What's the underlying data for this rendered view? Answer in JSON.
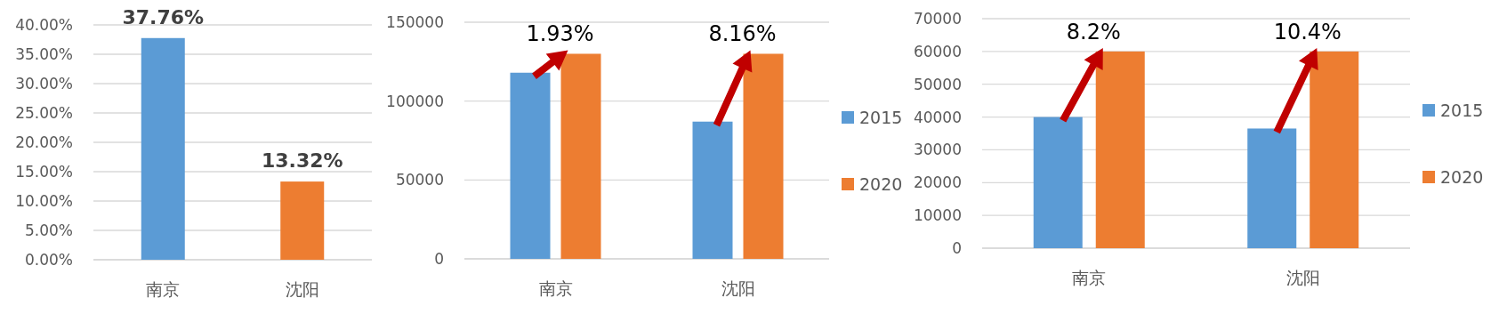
{
  "chart_data": [
    {
      "type": "bar",
      "categories": [
        "南京",
        "沈阳"
      ],
      "values": [
        37.76,
        13.32
      ],
      "colors": [
        "#5b9bd5",
        "#ed7d31"
      ],
      "value_labels": [
        "37.76%",
        "13.32%"
      ],
      "ylim": [
        0,
        40
      ],
      "yticks": [
        {
          "value": 0,
          "label": "0.00%"
        },
        {
          "value": 5,
          "label": "5.00%"
        },
        {
          "value": 10,
          "label": "10.00%"
        },
        {
          "value": 15,
          "label": "15.00%"
        },
        {
          "value": 20,
          "label": "20.00%"
        },
        {
          "value": 25,
          "label": "25.00%"
        },
        {
          "value": 30,
          "label": "30.00%"
        },
        {
          "value": 35,
          "label": "35.00%"
        },
        {
          "value": 40,
          "label": "40.00%"
        }
      ],
      "grid": "y",
      "legend": false
    },
    {
      "type": "bar",
      "categories": [
        "南京",
        "沈阳"
      ],
      "series": [
        {
          "name": "2015",
          "color": "#5b9bd5",
          "values": [
            118000,
            87000
          ]
        },
        {
          "name": "2020",
          "color": "#ed7d31",
          "values": [
            130000,
            130000
          ]
        }
      ],
      "ylim": [
        0,
        150000
      ],
      "yticks": [
        0,
        50000,
        100000,
        150000
      ],
      "grid": "y",
      "legend": "right",
      "annotations": [
        {
          "text": "1.93%",
          "y": 130000
        },
        {
          "text": "8.16%",
          "y": 130000
        }
      ]
    },
    {
      "type": "bar",
      "categories": [
        "南京",
        "沈阳"
      ],
      "series": [
        {
          "name": "2015",
          "color": "#5b9bd5",
          "values": [
            40000,
            36500
          ]
        },
        {
          "name": "2020",
          "color": "#ed7d31",
          "values": [
            60000,
            60000
          ]
        }
      ],
      "ylim": [
        0,
        70000
      ],
      "yticks": [
        0,
        10000,
        20000,
        30000,
        40000,
        50000,
        60000,
        70000
      ],
      "grid": "y",
      "legend": "right",
      "annotations": [
        {
          "text": "8.2%",
          "y": 60000
        },
        {
          "text": "10.4%",
          "y": 60000
        }
      ]
    }
  ]
}
